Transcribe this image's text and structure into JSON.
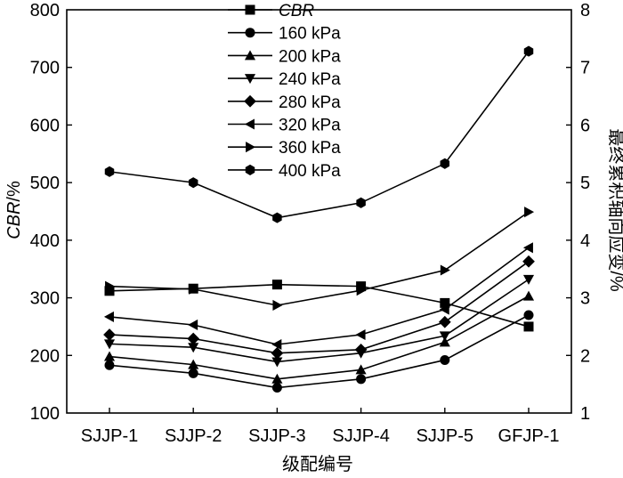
{
  "chart_data": {
    "type": "line",
    "title": "",
    "xlabel": "级配编号",
    "ylabel_left_italic": "CBR",
    "ylabel_left_suffix": "/%",
    "ylabel_right": "最终累积轴向应变/%",
    "categories": [
      "SJJP-1",
      "SJJP-2",
      "SJJP-3",
      "SJJP-4",
      "SJJP-5",
      "GFJP-1"
    ],
    "ylim_left": [
      100,
      800
    ],
    "yticks_left": [
      100,
      200,
      300,
      400,
      500,
      600,
      700,
      800
    ],
    "ylim_right": [
      1,
      8
    ],
    "yticks_right": [
      1,
      2,
      3,
      4,
      5,
      6,
      7,
      8
    ],
    "legend_position": "top-center",
    "series": [
      {
        "name": "CBR",
        "italic": true,
        "axis": "left",
        "marker": "square",
        "values": [
          312,
          316,
          323,
          320,
          291,
          250
        ]
      },
      {
        "name": "160 kPa",
        "axis": "right",
        "marker": "circle",
        "values": [
          1.83,
          1.69,
          1.44,
          1.59,
          1.92,
          2.7
        ]
      },
      {
        "name": "200 kPa",
        "axis": "right",
        "marker": "triangle-up",
        "values": [
          1.98,
          1.84,
          1.59,
          1.75,
          2.23,
          3.03
        ]
      },
      {
        "name": "240 kPa",
        "axis": "right",
        "marker": "triangle-down",
        "values": [
          2.2,
          2.14,
          1.89,
          2.04,
          2.34,
          3.32
        ]
      },
      {
        "name": "280 kPa",
        "axis": "right",
        "marker": "diamond",
        "values": [
          2.36,
          2.29,
          2.04,
          2.1,
          2.58,
          3.63
        ]
      },
      {
        "name": "320 kPa",
        "axis": "right",
        "marker": "triangle-left",
        "values": [
          2.67,
          2.53,
          2.19,
          2.36,
          2.8,
          3.87
        ]
      },
      {
        "name": "360 kPa",
        "axis": "right",
        "marker": "triangle-right",
        "values": [
          3.2,
          3.15,
          2.87,
          3.13,
          3.48,
          4.49
        ]
      },
      {
        "name": "400 kPa",
        "axis": "right",
        "marker": "hexagon",
        "values": [
          5.19,
          5.0,
          4.39,
          4.65,
          5.33,
          7.28
        ]
      }
    ]
  }
}
